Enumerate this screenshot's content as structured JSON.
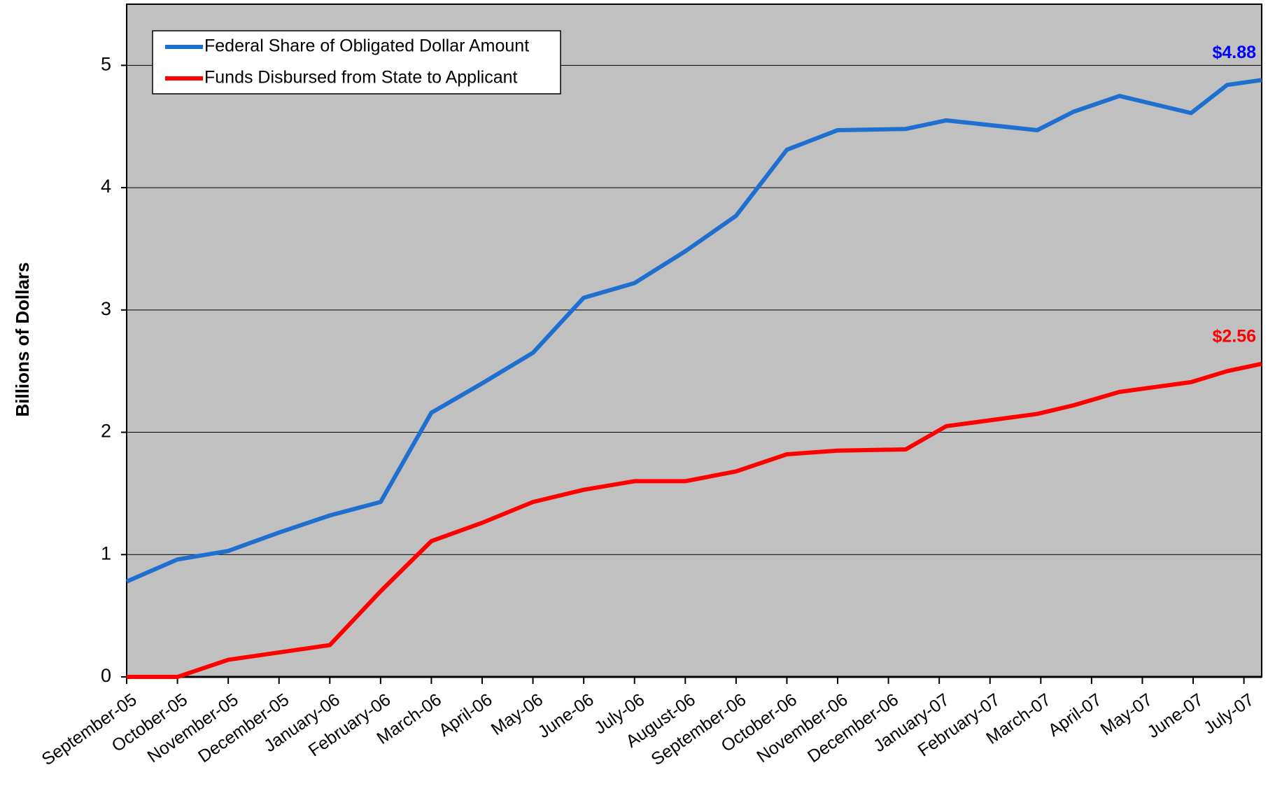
{
  "chart_data": {
    "type": "line",
    "ylabel": "Billions of Dollars",
    "x": [
      0,
      1,
      2,
      3,
      4,
      5,
      6,
      7,
      8,
      9,
      10,
      11,
      12,
      13,
      14,
      15.34,
      16.14,
      17.93,
      18.64,
      19.55,
      20.96,
      21.67,
      22.35
    ],
    "series": [
      {
        "name": "Federal Share of Obligated Dollar Amount",
        "color": "#1f6fd0",
        "end_label": "$4.88",
        "end_label_color": "#0000ff",
        "values": [
          0.78,
          0.96,
          1.03,
          1.18,
          1.32,
          1.43,
          2.16,
          2.4,
          2.65,
          3.1,
          3.22,
          3.48,
          3.77,
          4.31,
          4.47,
          4.48,
          4.55,
          4.47,
          4.62,
          4.75,
          4.61,
          4.84,
          4.88
        ]
      },
      {
        "name": "Funds Disbursed from State to Applicant",
        "color": "#ff0000",
        "end_label": "$2.56",
        "end_label_color": "#ff0000",
        "values": [
          0,
          0,
          0.14,
          0.2,
          0.26,
          0.7,
          1.11,
          1.26,
          1.43,
          1.53,
          1.6,
          1.6,
          1.68,
          1.82,
          1.85,
          1.86,
          2.05,
          2.15,
          2.22,
          2.33,
          2.41,
          2.5,
          2.56
        ]
      }
    ],
    "xlim": [
      0,
      22.35
    ],
    "xticks": [
      {
        "value": 0,
        "label": "September-05"
      },
      {
        "value": 1,
        "label": "October-05"
      },
      {
        "value": 2,
        "label": "November-05"
      },
      {
        "value": 3,
        "label": "December-05"
      },
      {
        "value": 4,
        "label": "January-06"
      },
      {
        "value": 5,
        "label": "February-06"
      },
      {
        "value": 6,
        "label": "March-06"
      },
      {
        "value": 7,
        "label": "April-06"
      },
      {
        "value": 8,
        "label": "May-06"
      },
      {
        "value": 9,
        "label": "June-06"
      },
      {
        "value": 10,
        "label": "July-06"
      },
      {
        "value": 11,
        "label": "August-06"
      },
      {
        "value": 12,
        "label": "September-06"
      },
      {
        "value": 13,
        "label": "October-06"
      },
      {
        "value": 14,
        "label": "November-06"
      },
      {
        "value": 15,
        "label": "December-06"
      },
      {
        "value": 16,
        "label": "January-07"
      },
      {
        "value": 17,
        "label": "February-07"
      },
      {
        "value": 18,
        "label": "March-07"
      },
      {
        "value": 19,
        "label": "April-07"
      },
      {
        "value": 20,
        "label": "May-07"
      },
      {
        "value": 21,
        "label": "June-07"
      },
      {
        "value": 22,
        "label": "July-07"
      }
    ],
    "ylim": [
      0,
      5.5
    ],
    "yticks": [
      0,
      1,
      2,
      3,
      4,
      5
    ],
    "grid": true,
    "plot_background": "#c0c0c0",
    "legend": "upper left"
  }
}
